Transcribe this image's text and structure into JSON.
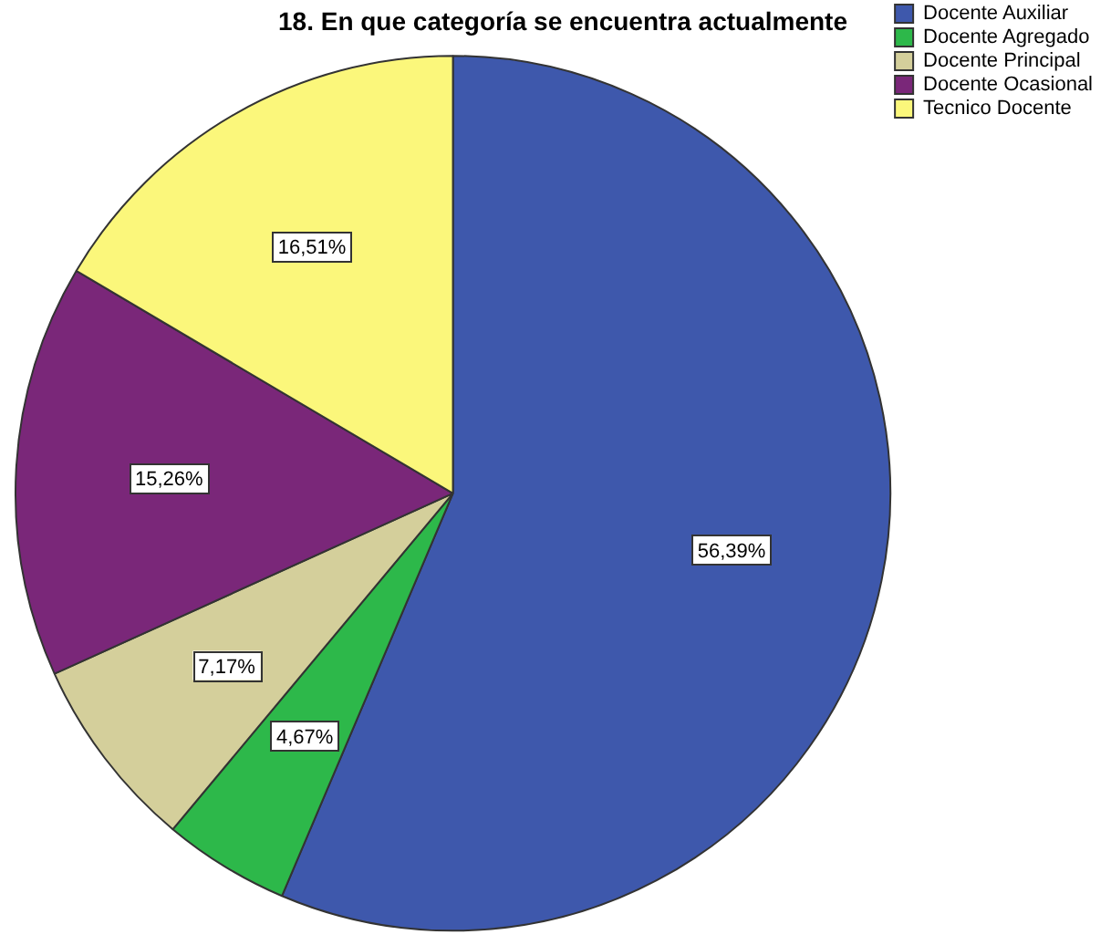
{
  "chart_data": {
    "type": "pie",
    "title": "18. En que categoría se encuentra actualmente",
    "categories": [
      "Docente Auxiliar",
      "Docente Agregado",
      "Docente Principal",
      "Docente Ocasional",
      "Tecnico Docente"
    ],
    "values": [
      56.39,
      4.67,
      7.17,
      15.26,
      16.51
    ],
    "colors": [
      "#3e58ac",
      "#2db84a",
      "#d4cf9b",
      "#7a2779",
      "#fbf77b"
    ],
    "value_labels": [
      "56,39%",
      "4,67%",
      "7,17%",
      "15,26%",
      "16,51%"
    ],
    "legend": "top right"
  }
}
